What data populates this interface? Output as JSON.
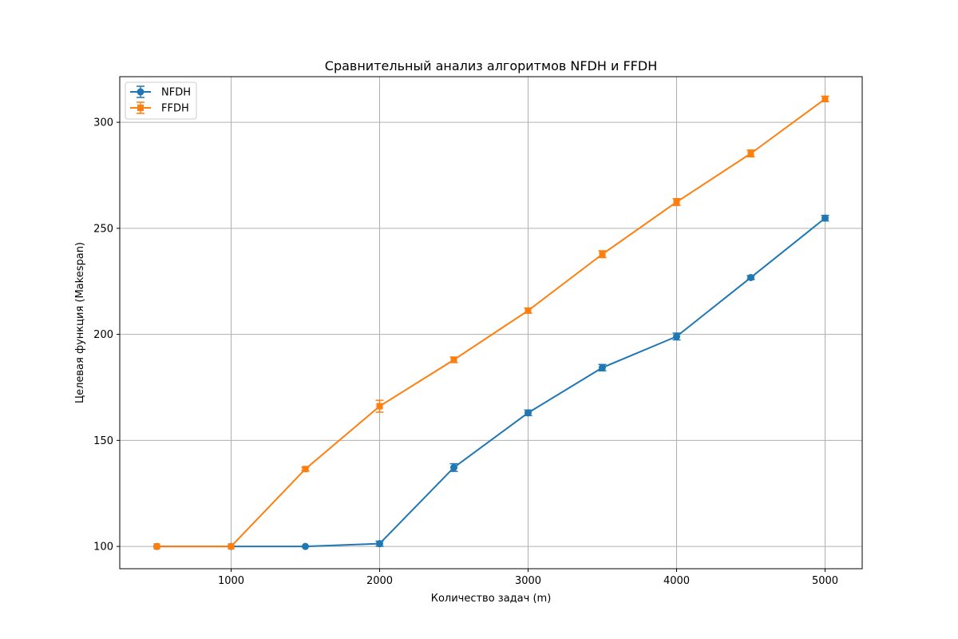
{
  "chart_data": {
    "type": "line",
    "title": "Сравнительный анализ алгоритмов NFDH и FFDH",
    "xlabel": "Количество задач (m)",
    "ylabel": "Целевая функция (Makespan)",
    "xlim": [
      250,
      5250
    ],
    "ylim": [
      89.5,
      321.5
    ],
    "xticks": [
      1000,
      2000,
      3000,
      4000,
      5000
    ],
    "yticks": [
      100,
      150,
      200,
      250,
      300
    ],
    "grid": true,
    "legend_position": "top-left",
    "error_bars": true,
    "series": [
      {
        "name": "NFDH",
        "color": "#1f77b4",
        "marker": "circle",
        "x": [
          500,
          1000,
          1500,
          2000,
          2500,
          3000,
          3500,
          4000,
          4500,
          5000
        ],
        "y": [
          100,
          100,
          100,
          101.3,
          137.2,
          163.0,
          184.3,
          199.0,
          226.8,
          254.8
        ],
        "err": [
          0,
          0,
          0,
          1.2,
          1.8,
          1.3,
          1.5,
          1.6,
          0.9,
          1.3
        ]
      },
      {
        "name": "FFDH",
        "color": "#ff7f0e",
        "marker": "square",
        "x": [
          500,
          1000,
          1500,
          2000,
          2500,
          3000,
          3500,
          4000,
          4500,
          5000
        ],
        "y": [
          100,
          100,
          136.5,
          166.1,
          188.0,
          211.2,
          237.8,
          262.4,
          285.3,
          311.0
        ],
        "err": [
          0,
          0,
          0.8,
          2.8,
          1.3,
          1.2,
          1.6,
          1.6,
          1.6,
          1.3
        ]
      }
    ]
  }
}
